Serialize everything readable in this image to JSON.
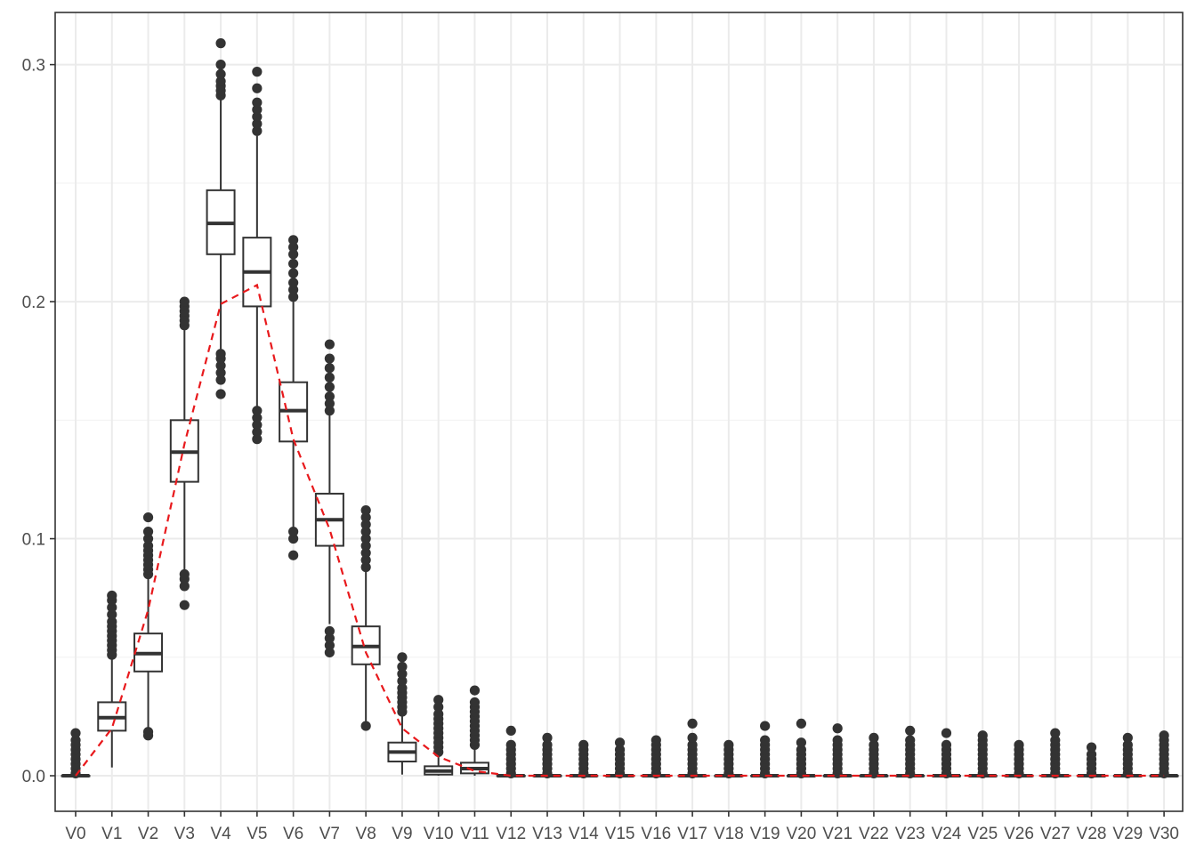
{
  "chart_data": {
    "type": "boxplot",
    "title": "",
    "xlabel": "",
    "ylabel": "",
    "ylim": [
      -0.015,
      0.322
    ],
    "yticks": [
      0.0,
      0.1,
      0.2,
      0.3
    ],
    "ytick_labels": [
      "0.0",
      "0.1",
      "0.2",
      "0.3"
    ],
    "grid": true,
    "legend": "none",
    "categories": [
      "V0",
      "V1",
      "V2",
      "V3",
      "V4",
      "V5",
      "V6",
      "V7",
      "V8",
      "V9",
      "V10",
      "V11",
      "V12",
      "V13",
      "V14",
      "V15",
      "V16",
      "V17",
      "V18",
      "V19",
      "V20",
      "V21",
      "V22",
      "V23",
      "V24",
      "V25",
      "V26",
      "V27",
      "V28",
      "V29",
      "V30"
    ],
    "boxes": [
      {
        "q1": 0.0,
        "median": 0.0,
        "q3": 0.0,
        "whisker_low": 0.0,
        "whisker_high": 0.0,
        "outliers_low": [],
        "outliers_high": [
          0.001,
          0.003,
          0.005,
          0.007,
          0.009,
          0.011,
          0.013,
          0.015,
          0.018
        ]
      },
      {
        "q1": 0.019,
        "median": 0.0245,
        "q3": 0.031,
        "whisker_low": 0.0035,
        "whisker_high": 0.05,
        "outliers_low": [],
        "outliers_high": [
          0.051,
          0.053,
          0.055,
          0.057,
          0.059,
          0.061,
          0.063,
          0.065,
          0.068,
          0.071,
          0.074,
          0.076
        ]
      },
      {
        "q1": 0.044,
        "median": 0.0515,
        "q3": 0.06,
        "whisker_low": 0.02,
        "whisker_high": 0.083,
        "outliers_low": [
          0.017,
          0.0185
        ],
        "outliers_high": [
          0.085,
          0.087,
          0.089,
          0.091,
          0.093,
          0.095,
          0.097,
          0.1,
          0.103,
          0.109
        ]
      },
      {
        "q1": 0.124,
        "median": 0.1365,
        "q3": 0.15,
        "whisker_low": 0.0865,
        "whisker_high": 0.188,
        "outliers_low": [
          0.072,
          0.08,
          0.083,
          0.085
        ],
        "outliers_high": [
          0.19,
          0.192,
          0.194,
          0.196,
          0.198,
          0.2
        ]
      },
      {
        "q1": 0.22,
        "median": 0.233,
        "q3": 0.247,
        "whisker_low": 0.18,
        "whisker_high": 0.286,
        "outliers_low": [
          0.161,
          0.167,
          0.17,
          0.173,
          0.176,
          0.178
        ],
        "outliers_high": [
          0.287,
          0.289,
          0.291,
          0.293,
          0.296,
          0.3,
          0.309
        ]
      },
      {
        "q1": 0.198,
        "median": 0.2125,
        "q3": 0.227,
        "whisker_low": 0.155,
        "whisker_high": 0.27,
        "outliers_low": [
          0.142,
          0.145,
          0.148,
          0.151,
          0.154
        ],
        "outliers_high": [
          0.272,
          0.275,
          0.278,
          0.281,
          0.284,
          0.29,
          0.297
        ]
      },
      {
        "q1": 0.141,
        "median": 0.154,
        "q3": 0.166,
        "whisker_low": 0.104,
        "whisker_high": 0.2,
        "outliers_low": [
          0.093,
          0.1,
          0.103
        ],
        "outliers_high": [
          0.202,
          0.205,
          0.208,
          0.212,
          0.216,
          0.22,
          0.223,
          0.226
        ]
      },
      {
        "q1": 0.097,
        "median": 0.108,
        "q3": 0.119,
        "whisker_low": 0.064,
        "whisker_high": 0.152,
        "outliers_low": [
          0.052,
          0.055,
          0.058,
          0.061
        ],
        "outliers_high": [
          0.154,
          0.157,
          0.16,
          0.164,
          0.168,
          0.172,
          0.176,
          0.182
        ]
      },
      {
        "q1": 0.047,
        "median": 0.0545,
        "q3": 0.063,
        "whisker_low": 0.023,
        "whisker_high": 0.086,
        "outliers_low": [
          0.021
        ],
        "outliers_high": [
          0.088,
          0.091,
          0.094,
          0.097,
          0.1,
          0.103,
          0.106,
          0.109,
          0.112
        ]
      },
      {
        "q1": 0.006,
        "median": 0.01,
        "q3": 0.014,
        "whisker_low": 0.0005,
        "whisker_high": 0.026,
        "outliers_low": [],
        "outliers_high": [
          0.027,
          0.029,
          0.031,
          0.033,
          0.035,
          0.037,
          0.04,
          0.043,
          0.046,
          0.05
        ]
      },
      {
        "q1": 0.0005,
        "median": 0.002,
        "q3": 0.004,
        "whisker_low": 0.0,
        "whisker_high": 0.009,
        "outliers_low": [],
        "outliers_high": [
          0.01,
          0.012,
          0.014,
          0.016,
          0.018,
          0.02,
          0.022,
          0.024,
          0.026,
          0.029,
          0.032
        ]
      },
      {
        "q1": 0.001,
        "median": 0.003,
        "q3": 0.0055,
        "whisker_low": 0.0,
        "whisker_high": 0.012,
        "outliers_low": [],
        "outliers_high": [
          0.013,
          0.015,
          0.017,
          0.019,
          0.021,
          0.023,
          0.025,
          0.027,
          0.029,
          0.031,
          0.036
        ]
      },
      {
        "q1": 0.0,
        "median": 0.0,
        "q3": 0.0,
        "whisker_low": 0.0,
        "whisker_high": 0.0,
        "outliers_low": [],
        "outliers_high": [
          0.001,
          0.003,
          0.005,
          0.007,
          0.009,
          0.011,
          0.013,
          0.019
        ]
      },
      {
        "q1": 0.0,
        "median": 0.0,
        "q3": 0.0,
        "whisker_low": 0.0,
        "whisker_high": 0.0,
        "outliers_low": [],
        "outliers_high": [
          0.001,
          0.003,
          0.005,
          0.007,
          0.009,
          0.011,
          0.013,
          0.016
        ]
      },
      {
        "q1": 0.0,
        "median": 0.0,
        "q3": 0.0,
        "whisker_low": 0.0,
        "whisker_high": 0.0,
        "outliers_low": [],
        "outliers_high": [
          0.001,
          0.003,
          0.005,
          0.007,
          0.009,
          0.011,
          0.013
        ]
      },
      {
        "q1": 0.0,
        "median": 0.0,
        "q3": 0.0,
        "whisker_low": 0.0,
        "whisker_high": 0.0,
        "outliers_low": [],
        "outliers_high": [
          0.001,
          0.003,
          0.005,
          0.007,
          0.009,
          0.011,
          0.014
        ]
      },
      {
        "q1": 0.0,
        "median": 0.0,
        "q3": 0.0,
        "whisker_low": 0.0,
        "whisker_high": 0.0,
        "outliers_low": [],
        "outliers_high": [
          0.001,
          0.003,
          0.005,
          0.007,
          0.009,
          0.011,
          0.013,
          0.015
        ]
      },
      {
        "q1": 0.0,
        "median": 0.0,
        "q3": 0.0,
        "whisker_low": 0.0,
        "whisker_high": 0.0,
        "outliers_low": [],
        "outliers_high": [
          0.001,
          0.003,
          0.005,
          0.007,
          0.009,
          0.011,
          0.013,
          0.016,
          0.022
        ]
      },
      {
        "q1": 0.0,
        "median": 0.0,
        "q3": 0.0,
        "whisker_low": 0.0,
        "whisker_high": 0.0,
        "outliers_low": [],
        "outliers_high": [
          0.001,
          0.003,
          0.005,
          0.007,
          0.009,
          0.011,
          0.013
        ]
      },
      {
        "q1": 0.0,
        "median": 0.0,
        "q3": 0.0,
        "whisker_low": 0.0,
        "whisker_high": 0.0,
        "outliers_low": [],
        "outliers_high": [
          0.001,
          0.003,
          0.005,
          0.007,
          0.009,
          0.011,
          0.013,
          0.015,
          0.021
        ]
      },
      {
        "q1": 0.0,
        "median": 0.0,
        "q3": 0.0,
        "whisker_low": 0.0,
        "whisker_high": 0.0,
        "outliers_low": [],
        "outliers_high": [
          0.001,
          0.003,
          0.005,
          0.007,
          0.009,
          0.011,
          0.014,
          0.022
        ]
      },
      {
        "q1": 0.0,
        "median": 0.0,
        "q3": 0.0,
        "whisker_low": 0.0,
        "whisker_high": 0.0,
        "outliers_low": [],
        "outliers_high": [
          0.001,
          0.003,
          0.005,
          0.007,
          0.009,
          0.011,
          0.013,
          0.015,
          0.02
        ]
      },
      {
        "q1": 0.0,
        "median": 0.0,
        "q3": 0.0,
        "whisker_low": 0.0,
        "whisker_high": 0.0,
        "outliers_low": [],
        "outliers_high": [
          0.001,
          0.003,
          0.005,
          0.007,
          0.009,
          0.011,
          0.013,
          0.016
        ]
      },
      {
        "q1": 0.0,
        "median": 0.0,
        "q3": 0.0,
        "whisker_low": 0.0,
        "whisker_high": 0.0,
        "outliers_low": [],
        "outliers_high": [
          0.001,
          0.003,
          0.005,
          0.007,
          0.009,
          0.011,
          0.013,
          0.015,
          0.019
        ]
      },
      {
        "q1": 0.0,
        "median": 0.0,
        "q3": 0.0,
        "whisker_low": 0.0,
        "whisker_high": 0.0,
        "outliers_low": [],
        "outliers_high": [
          0.001,
          0.003,
          0.005,
          0.007,
          0.009,
          0.011,
          0.013,
          0.018
        ]
      },
      {
        "q1": 0.0,
        "median": 0.0,
        "q3": 0.0,
        "whisker_low": 0.0,
        "whisker_high": 0.0,
        "outliers_low": [],
        "outliers_high": [
          0.001,
          0.003,
          0.005,
          0.007,
          0.009,
          0.011,
          0.013,
          0.015,
          0.017
        ]
      },
      {
        "q1": 0.0,
        "median": 0.0,
        "q3": 0.0,
        "whisker_low": 0.0,
        "whisker_high": 0.0,
        "outliers_low": [],
        "outliers_high": [
          0.001,
          0.003,
          0.005,
          0.007,
          0.009,
          0.011,
          0.013
        ]
      },
      {
        "q1": 0.0,
        "median": 0.0,
        "q3": 0.0,
        "whisker_low": 0.0,
        "whisker_high": 0.0,
        "outliers_low": [],
        "outliers_high": [
          0.001,
          0.003,
          0.005,
          0.007,
          0.009,
          0.011,
          0.013,
          0.015,
          0.018
        ]
      },
      {
        "q1": 0.0,
        "median": 0.0,
        "q3": 0.0,
        "whisker_low": 0.0,
        "whisker_high": 0.0,
        "outliers_low": [],
        "outliers_high": [
          0.001,
          0.003,
          0.005,
          0.007,
          0.009,
          0.012
        ]
      },
      {
        "q1": 0.0,
        "median": 0.0,
        "q3": 0.0,
        "whisker_low": 0.0,
        "whisker_high": 0.0,
        "outliers_low": [],
        "outliers_high": [
          0.001,
          0.003,
          0.005,
          0.007,
          0.009,
          0.011,
          0.013,
          0.016
        ]
      },
      {
        "q1": 0.0,
        "median": 0.0,
        "q3": 0.0,
        "whisker_low": 0.0,
        "whisker_high": 0.0,
        "outliers_low": [],
        "outliers_high": [
          0.001,
          0.003,
          0.005,
          0.007,
          0.009,
          0.011,
          0.013,
          0.015,
          0.017
        ]
      }
    ],
    "reference_line": {
      "style": "dashed",
      "color": "#e8191c",
      "values": [
        0.0,
        0.02,
        0.07,
        0.14,
        0.199,
        0.207,
        0.142,
        0.104,
        0.052,
        0.02,
        0.008,
        0.002,
        0.0,
        0.0,
        0.0,
        0.0,
        0.0,
        0.0,
        0.0,
        0.0,
        0.0,
        0.0,
        0.0,
        0.0,
        0.0,
        0.0,
        0.0,
        0.0,
        0.0,
        0.0,
        0.0
      ]
    },
    "colors": {
      "box_stroke": "#333333",
      "point_fill": "#333333",
      "panel_border": "#333333",
      "grid_major": "#ebebeb",
      "grid_minor": "#f3f3f3",
      "tick_text": "#4d4d4d"
    }
  }
}
